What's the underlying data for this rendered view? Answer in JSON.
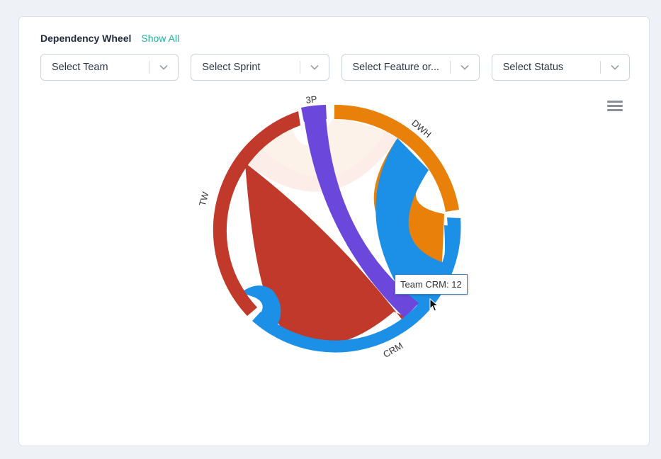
{
  "header": {
    "title": "Dependency Wheel",
    "show_all_label": "Show All"
  },
  "filters": [
    {
      "label": "Select Team"
    },
    {
      "label": "Select Sprint"
    },
    {
      "label": "Select Feature or..."
    },
    {
      "label": "Select Status"
    }
  ],
  "icons": {
    "dropdown": "chevron-down-icon",
    "menu": "hamburger-menu-icon",
    "cursor": "mouse-pointer-icon"
  },
  "chart_data": {
    "type": "dependency-wheel",
    "nodes": [
      {
        "name": "3P",
        "color": "#6c47db"
      },
      {
        "name": "DWH",
        "color": "#e8800a"
      },
      {
        "name": "CRM",
        "color": "#1b90e6"
      },
      {
        "name": "TW",
        "color": "#c0392b"
      }
    ],
    "tooltip": {
      "text": "Team CRM: 12"
    }
  },
  "colors": {
    "accent": "#1fb39b",
    "tooltip_border": "#3a7fc4"
  }
}
